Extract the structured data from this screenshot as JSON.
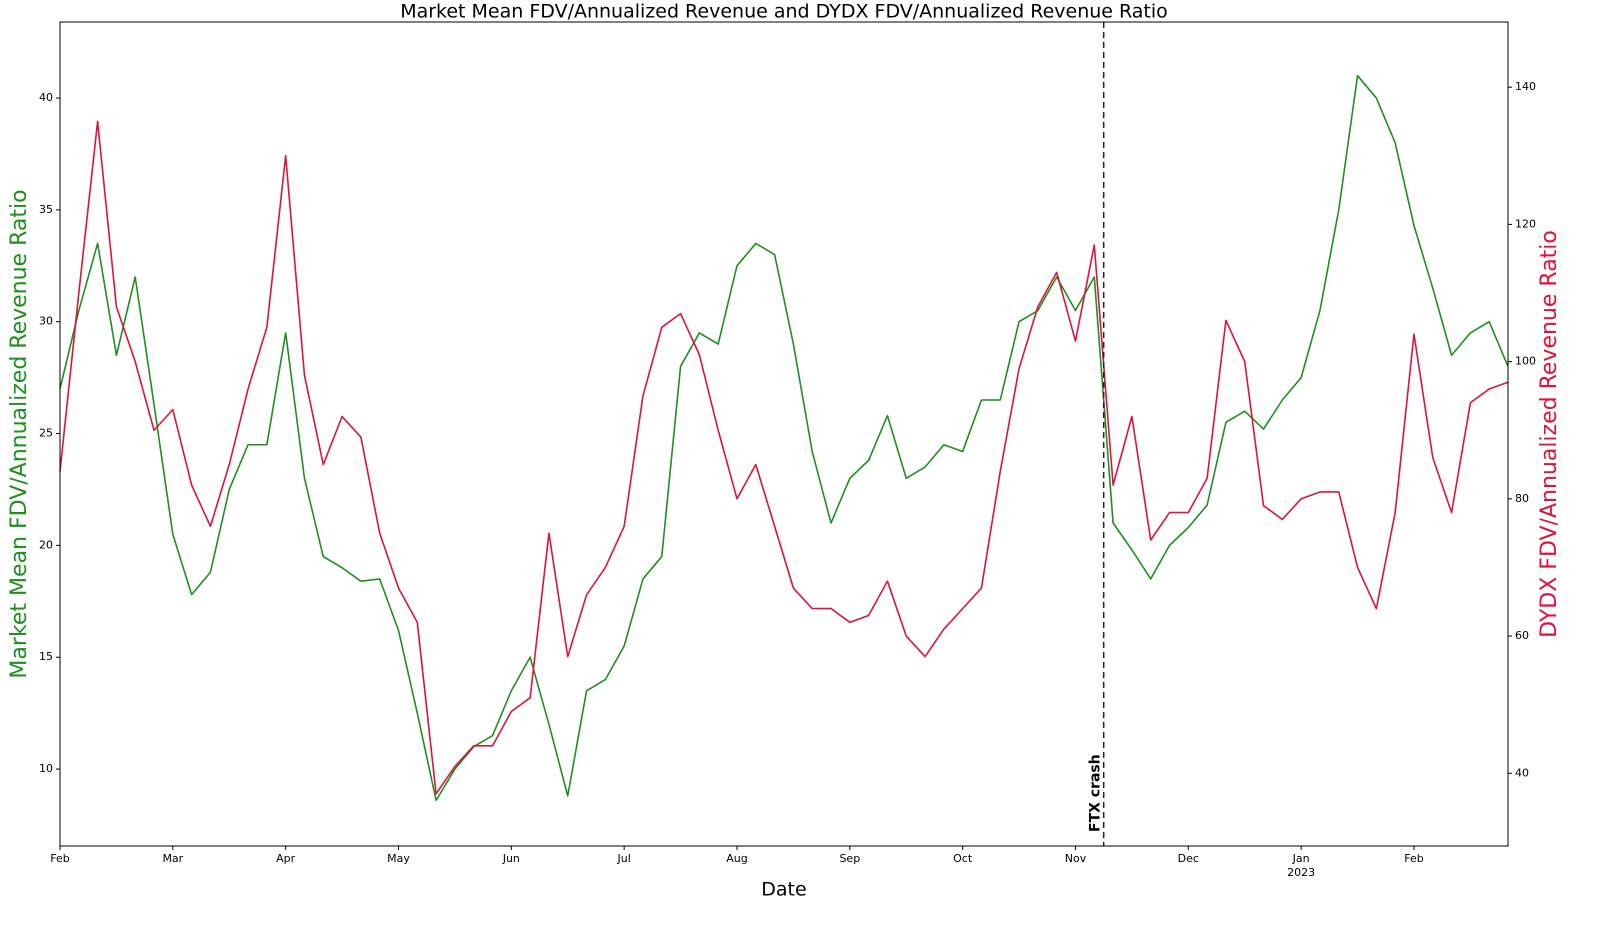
{
  "chart_data": {
    "type": "line",
    "title": "Market Mean FDV/Annualized Revenue and DYDX FDV/Annualized Revenue Ratio",
    "xlabel": "Date",
    "ylabel": "Market Mean FDV/Annualized Revenue Ratio",
    "y2label": "DYDX FDV/Annualized Revenue Ratio",
    "ylabel_color": "#1f8f1f",
    "y2label_color": "#dc143c",
    "categories": [
      "Feb",
      null,
      null,
      null,
      null,
      null,
      "Mar",
      null,
      null,
      null,
      null,
      null,
      "Apr",
      null,
      null,
      null,
      null,
      null,
      "May",
      null,
      null,
      null,
      null,
      null,
      "Jun",
      null,
      null,
      null,
      null,
      null,
      "Jul",
      null,
      null,
      null,
      null,
      null,
      "Aug",
      null,
      null,
      null,
      null,
      null,
      "Sep",
      null,
      null,
      null,
      null,
      null,
      "Oct",
      null,
      null,
      null,
      null,
      null,
      "Nov",
      null,
      null,
      null,
      null,
      null,
      "Dec",
      null,
      null,
      null,
      null,
      null,
      "Jan",
      null,
      null,
      null,
      null,
      null,
      "Feb",
      null,
      null,
      null,
      null,
      null
    ],
    "x_year_label": "2023",
    "series": [
      {
        "name": "Market Mean FDV/Annualized Revenue Ratio",
        "color": "#1f8f1f",
        "values": [
          27,
          30.5,
          33.5,
          28.5,
          32,
          26.3,
          20.5,
          17.8,
          18.8,
          22.5,
          24.5,
          24.5,
          29.5,
          23,
          19.5,
          19,
          18.4,
          18.5,
          16.2,
          12.5,
          8.6,
          10,
          11,
          11.5,
          13.5,
          15,
          12,
          8.8,
          13.5,
          14,
          15.5,
          18.5,
          19.5,
          28,
          29.5,
          29,
          32.5,
          33.5,
          33,
          29,
          24.2,
          21,
          23,
          23.8,
          25.8,
          23,
          23.5,
          24.5,
          24.2,
          26.5,
          26.5,
          30,
          30.5,
          32,
          30.5,
          32,
          21,
          19.8,
          18.5,
          20,
          20.8,
          21.8,
          25.5,
          26,
          25.2,
          26.5,
          27.5,
          30.5,
          35,
          41,
          40,
          38,
          34.3,
          31.5,
          28.5,
          29.5,
          30,
          28
        ]
      },
      {
        "name": "DYDX FDV/Annualized Revenue Ratio",
        "color": "#dc143c",
        "axis": "y2",
        "values": [
          84,
          110,
          135,
          108,
          100,
          90,
          93,
          82,
          76,
          85,
          96,
          105,
          130,
          98,
          85,
          92,
          89,
          75,
          67,
          62,
          37,
          41,
          44,
          44,
          49,
          51,
          75,
          57,
          66,
          70,
          76,
          95,
          105,
          107,
          101,
          90,
          80,
          85,
          76,
          67,
          64,
          64,
          62,
          63,
          68,
          60,
          57,
          61,
          64,
          67,
          84,
          99,
          108,
          113,
          103,
          117,
          82,
          92,
          74,
          78,
          78,
          83,
          106,
          100,
          79,
          77,
          80,
          81,
          81,
          70,
          64,
          78,
          104,
          86,
          78,
          94,
          96,
          97
        ]
      }
    ],
    "ylim": [
      6.56,
      43.4
    ],
    "yticks": [
      10,
      15,
      20,
      25,
      30,
      35,
      40
    ],
    "y2lim": [
      29.4,
      149.5
    ],
    "y2ticks": [
      40,
      60,
      80,
      100,
      120,
      140
    ],
    "grid": false,
    "annotations": [
      {
        "text": "FTX crash",
        "x": 55.5
      }
    ]
  }
}
